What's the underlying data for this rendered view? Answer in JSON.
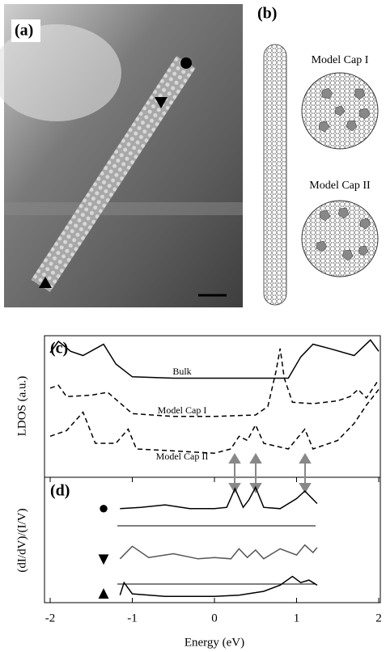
{
  "panel_a": {
    "label": "(a)"
  },
  "panel_b": {
    "label": "(b)",
    "caps": [
      "Model Cap I",
      "Model Cap II"
    ]
  },
  "chart_data": [
    {
      "type": "line",
      "panel_label": "(c)",
      "y_label": "LDOS (a.u.)",
      "xlim": [
        -2,
        2
      ],
      "ylim": [
        0,
        10
      ],
      "series": [
        {
          "name": "Bulk",
          "color": "#000000",
          "dash": false,
          "x": [
            -2,
            -1.9,
            -1.75,
            -1.6,
            -1.35,
            -1.2,
            -1.0,
            -0.5,
            0,
            0.5,
            0.9,
            1.05,
            1.2,
            1.4,
            1.7,
            1.9,
            2
          ],
          "values": [
            8.8,
            9.6,
            8.9,
            8.6,
            9.4,
            8.0,
            7.1,
            7.0,
            7.0,
            7.0,
            7.0,
            8.5,
            9.4,
            9.1,
            8.6,
            9.7,
            8.9
          ]
        },
        {
          "name": "Model Cap I",
          "color": "#000000",
          "dash": true,
          "x": [
            -2,
            -1.9,
            -1.8,
            -1.5,
            -1.3,
            -1.0,
            -0.5,
            0,
            0.5,
            0.65,
            0.75,
            0.8,
            0.85,
            0.95,
            1.2,
            1.5,
            1.65,
            1.75,
            1.85,
            2
          ],
          "values": [
            6.3,
            6.5,
            5.7,
            5.8,
            6.0,
            4.5,
            4.3,
            4.3,
            4.4,
            5.0,
            7.5,
            9.1,
            7.0,
            5.3,
            5.2,
            5.4,
            5.7,
            6.2,
            5.6,
            6.9
          ]
        },
        {
          "name": "Model Cap II",
          "color": "#000000",
          "dash": true,
          "x": [
            -2,
            -1.8,
            -1.6,
            -1.45,
            -1.2,
            -1.05,
            -0.95,
            -0.6,
            0,
            0.2,
            0.3,
            0.4,
            0.5,
            0.6,
            0.9,
            1.1,
            1.2,
            1.5,
            1.7,
            1.85,
            2
          ],
          "values": [
            2.9,
            3.3,
            4.6,
            2.4,
            2.4,
            3.4,
            2.0,
            1.9,
            1.7,
            2.0,
            2.9,
            2.6,
            3.7,
            2.4,
            2.0,
            3.4,
            2.0,
            2.6,
            3.8,
            5.1,
            6.2
          ]
        }
      ]
    },
    {
      "type": "line",
      "panel_label": "(d)",
      "y_label": "(dI/dV)/(I/V)",
      "x_label": "Energy (eV)",
      "xlim": [
        -2,
        2
      ],
      "ylim": [
        0,
        10
      ],
      "xticks": [
        -2,
        -1,
        0,
        1,
        2
      ],
      "series": [
        {
          "name": "●",
          "color": "#000000",
          "x": [
            -1.15,
            -0.9,
            -0.6,
            -0.3,
            0,
            0.15,
            0.25,
            0.35,
            0.42,
            0.5,
            0.6,
            0.8,
            1.0,
            1.1,
            1.25
          ],
          "values": [
            7.5,
            7.6,
            7.8,
            7.5,
            7.5,
            7.6,
            9.1,
            7.6,
            8.2,
            9.2,
            7.6,
            7.5,
            8.3,
            8.9,
            7.9
          ]
        },
        {
          "name": "▼",
          "color": "#555555",
          "x": [
            -1.15,
            -1.0,
            -0.8,
            -0.5,
            -0.2,
            0,
            0.2,
            0.3,
            0.4,
            0.5,
            0.6,
            0.8,
            1.0,
            1.1,
            1.2,
            1.25
          ],
          "values": [
            3.5,
            4.5,
            3.6,
            3.9,
            3.5,
            3.6,
            3.5,
            4.3,
            3.6,
            4.2,
            3.5,
            4.3,
            3.8,
            4.6,
            4.0,
            4.4
          ]
        },
        {
          "name": "▲",
          "color": "#000000",
          "x": [
            -1.15,
            -1.1,
            -1.0,
            -0.6,
            -0.2,
            0,
            0.3,
            0.6,
            0.8,
            0.95,
            1.05,
            1.15,
            1.25
          ],
          "values": [
            0.6,
            1.6,
            0.7,
            0.5,
            0.5,
            0.5,
            0.6,
            0.9,
            1.4,
            2.1,
            1.6,
            1.8,
            1.4
          ]
        }
      ]
    }
  ]
}
